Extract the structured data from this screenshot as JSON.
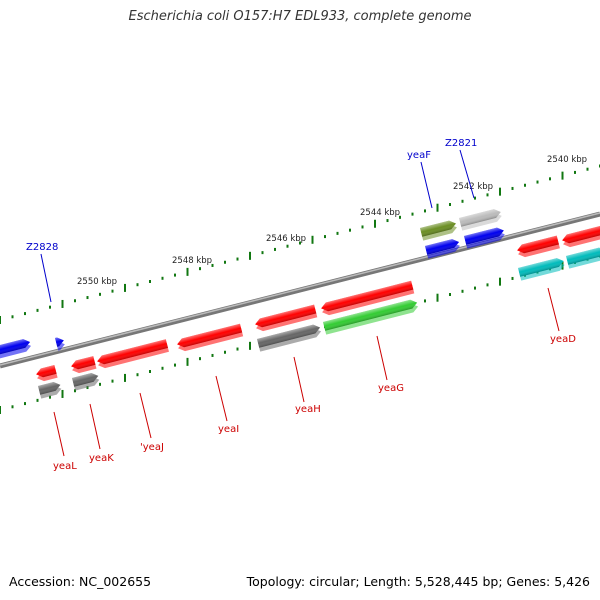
{
  "title": "Escherichia coli O157:H7 EDL933, complete genome",
  "footer": {
    "accession": "Accession: NC_002655",
    "summary": "Topology: circular; Length: 5,528,445 bp; Genes: 5,426"
  },
  "colors": {
    "backbone": "#888888",
    "red_gene": "#ff0000",
    "blue_gene": "#0000ee",
    "gray_gene": "#666666",
    "light_gray_gene": "#bbbbbb",
    "green_gene": "#33cc33",
    "olive_gene": "#6b8e23",
    "cyan_gene": "#00bbbb",
    "tick": "#117711",
    "red_label": "#cc0000",
    "blue_label": "#0000cc"
  },
  "ticks": [
    "2540 kbp",
    "2542 kbp",
    "2544 kbp",
    "2546 kbp",
    "2548 kbp",
    "2550 kbp"
  ],
  "labels": {
    "top": [
      "Z2821",
      "yeaF",
      "Z2828"
    ],
    "bottom": [
      "yeaD",
      "yeaG",
      "yeaH",
      "yeaI",
      "'yeaJ",
      "yeaK",
      "yeaL"
    ]
  }
}
